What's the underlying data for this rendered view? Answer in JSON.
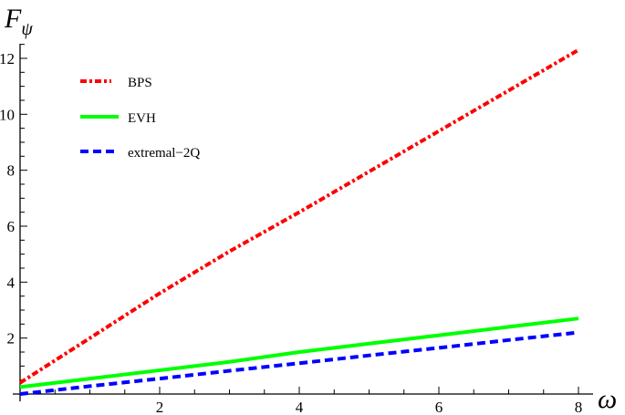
{
  "chart_data": {
    "type": "line",
    "title": "",
    "xlabel": "ω",
    "ylabel": "F_ψ",
    "xlim": [
      0,
      8
    ],
    "ylim": [
      0,
      12.5
    ],
    "x_ticks": [
      "2",
      "4",
      "6",
      "8"
    ],
    "y_ticks": [
      "2",
      "4",
      "6",
      "8",
      "10",
      "12"
    ],
    "grid": false,
    "legend_position": "upper-left",
    "x": [
      0,
      1,
      2,
      3,
      4,
      5,
      6,
      7,
      8
    ],
    "series": [
      {
        "name": "BPS",
        "style": "dot-dashed",
        "color": "#ff0000",
        "values": [
          0.4,
          2.0,
          3.6,
          5.1,
          6.5,
          7.95,
          9.4,
          10.85,
          12.3
        ]
      },
      {
        "name": "EVH",
        "style": "solid",
        "color": "#00ff00",
        "values": [
          0.25,
          0.55,
          0.85,
          1.15,
          1.5,
          1.8,
          2.1,
          2.4,
          2.7
        ]
      },
      {
        "name": "extremal-2Q",
        "style": "dashed",
        "color": "#0000ff",
        "values": [
          0.0,
          0.28,
          0.55,
          0.83,
          1.1,
          1.38,
          1.65,
          1.93,
          2.2
        ]
      }
    ]
  },
  "labels": {
    "y_axis_main": "F",
    "y_axis_sub": "ψ",
    "x_axis": "ω"
  },
  "legend": [
    {
      "label": "BPS",
      "color": "#ff0000"
    },
    {
      "label": "EVH",
      "color": "#00ff00"
    },
    {
      "label": "extremal−2Q",
      "color": "#0000ff"
    }
  ]
}
